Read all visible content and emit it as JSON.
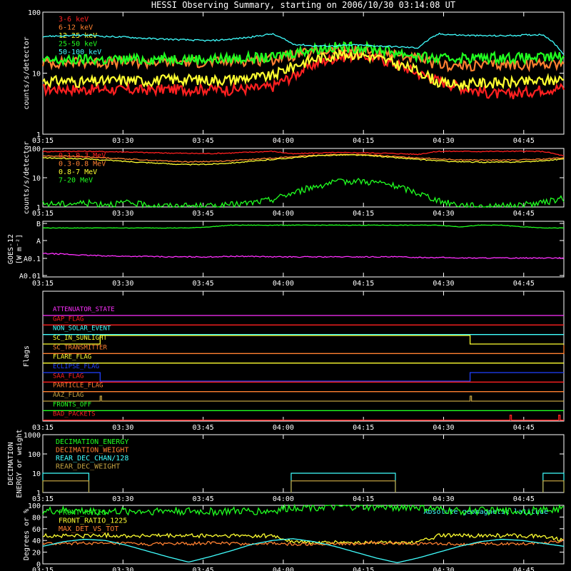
{
  "title": "HESSI Observing Summary, starting on 2006/10/30 03:14:08 UT",
  "x_ticks": [
    "03:15",
    "03:30",
    "03:45",
    "04:00",
    "04:15",
    "04:30",
    "04:45"
  ],
  "colors": {
    "red": "#ff2020",
    "orange": "#ff8030",
    "yellow": "#ffff30",
    "green": "#20ff20",
    "cyan": "#40ffff",
    "magenta": "#ff30ff",
    "blue": "#2040ff",
    "olive": "#c0a040",
    "white": "#ffffff"
  },
  "chart_data": [
    {
      "id": "lo",
      "type": "line",
      "ylabel": "counts/s/detector",
      "ylog": true,
      "ylim": [
        1,
        100
      ],
      "y_ticks": [
        "1",
        "10",
        "100"
      ],
      "x_ticks": [
        "03:15",
        "03:30",
        "03:45",
        "04:00",
        "04:15",
        "04:30",
        "04:45"
      ],
      "legend_placement": "top-left",
      "series": [
        {
          "name": "3-6 keV",
          "color": "red",
          "values": [
            5.5,
            5.6,
            5.4,
            5.5,
            5.3,
            5.4,
            5.5,
            5.5,
            5.6,
            5.4,
            5.6,
            6,
            9,
            14,
            18,
            20,
            18,
            14,
            10,
            7.5,
            6,
            5,
            4.5,
            4.8,
            5.5,
            5.8
          ]
        },
        {
          "name": "6-12 keV",
          "color": "orange",
          "values": [
            15,
            15,
            15.5,
            15,
            15.5,
            15,
            15.5,
            15.5,
            15,
            16,
            16.5,
            17,
            20,
            22,
            24,
            24,
            22,
            20,
            17,
            14,
            13,
            13.5,
            14,
            14,
            14.5,
            15
          ]
        },
        {
          "name": "12-25 keV",
          "color": "yellow",
          "values": [
            7.5,
            7.5,
            7.2,
            7.5,
            7.8,
            7.5,
            8,
            8,
            7.8,
            8,
            8.5,
            9,
            13,
            17,
            20,
            21,
            18,
            14,
            11,
            7,
            6.5,
            7,
            7,
            7.2,
            7.5,
            8
          ]
        },
        {
          "name": "25-50 keV",
          "color": "green",
          "values": [
            16,
            16,
            17,
            16.5,
            17,
            17,
            17.5,
            17.5,
            17,
            17.5,
            18,
            18,
            22,
            25,
            27,
            27,
            25,
            22,
            19,
            17,
            18,
            18,
            18.5,
            18,
            18,
            19
          ]
        },
        {
          "name": "50-100 keV",
          "color": "cyan",
          "values": [
            40,
            41,
            42,
            40,
            39,
            37,
            36,
            35,
            34,
            36,
            39,
            44,
            30,
            28,
            28,
            29,
            28,
            27,
            26,
            44,
            42,
            41,
            41,
            42,
            43,
            20
          ]
        }
      ]
    },
    {
      "id": "hi",
      "type": "line",
      "ylabel": "counts/s/detector",
      "ylog": true,
      "ylim": [
        1,
        100
      ],
      "y_ticks": [
        "1",
        "10",
        "100"
      ],
      "x_ticks": [
        "03:15",
        "03:30",
        "03:45",
        "04:00",
        "04:15",
        "04:30",
        "04:45"
      ],
      "legend_placement": "top-left",
      "series": [
        {
          "name": "0.1-0.3 MeV",
          "color": "red",
          "values": [
            78,
            80,
            80,
            78,
            76,
            72,
            70,
            68,
            67,
            70,
            75,
            80,
            65,
            70,
            72,
            72,
            70,
            67,
            63,
            80,
            80,
            79,
            80,
            80,
            79,
            55
          ]
        },
        {
          "name": "0.3-0.8 MeV",
          "color": "orange",
          "values": [
            55,
            55,
            52,
            48,
            44,
            40,
            37,
            35,
            36,
            38,
            42,
            47,
            52,
            58,
            62,
            62,
            58,
            52,
            48,
            44,
            41,
            40,
            40,
            41,
            43,
            48
          ]
        },
        {
          "name": "0.8-7 MeV",
          "color": "yellow",
          "values": [
            48,
            46,
            44,
            40,
            36,
            33,
            30,
            28,
            29,
            32,
            36,
            42,
            48,
            55,
            60,
            60,
            55,
            48,
            42,
            38,
            35,
            34,
            34,
            35,
            38,
            44
          ]
        },
        {
          "name": "7-20 MeV",
          "color": "green",
          "values": [
            1.3,
            1.3,
            1.4,
            1.3,
            1.4,
            1.2,
            1.1,
            1.1,
            1.1,
            1.2,
            1.4,
            1.8,
            3,
            5,
            7,
            8,
            7,
            5,
            3,
            1.6,
            1.2,
            1.1,
            1.1,
            1.2,
            1.4,
            2
          ]
        }
      ]
    },
    {
      "id": "goes",
      "type": "line",
      "ylabel": "GOES-12",
      "ylabel2": "[W m⁻²]",
      "y_ticks": [
        "B",
        "A",
        "A0.1",
        "A0.01"
      ],
      "x_ticks": [
        "03:15",
        "03:30",
        "03:45",
        "04:00",
        "04:15",
        "04:30",
        "04:45"
      ],
      "series": [
        {
          "color": "green",
          "values": [
            0.88,
            0.88,
            0.88,
            0.88,
            0.88,
            0.88,
            0.88,
            0.88,
            0.9,
            0.93,
            0.93,
            0.93,
            0.93,
            0.93,
            0.93,
            0.93,
            0.93,
            0.93,
            0.93,
            0.93,
            0.9,
            0.93,
            0.93,
            0.9,
            0.88,
            0.88
          ]
        },
        {
          "color": "magenta",
          "values": [
            0.42,
            0.41,
            0.39,
            0.38,
            0.37,
            0.37,
            0.36,
            0.36,
            0.36,
            0.37,
            0.37,
            0.36,
            0.36,
            0.36,
            0.36,
            0.36,
            0.36,
            0.36,
            0.35,
            0.35,
            0.34,
            0.34,
            0.34,
            0.34,
            0.34,
            0.34
          ]
        }
      ]
    },
    {
      "id": "flags",
      "type": "line",
      "ylabel": "Flags",
      "x_ticks": [
        "03:15",
        "03:30",
        "03:45",
        "04:00",
        "04:15",
        "04:30",
        "04:45"
      ],
      "flags": [
        {
          "name": "ATTENUATOR_STATE",
          "color": "magenta",
          "steps": []
        },
        {
          "name": "GAP_FLAG",
          "color": "red",
          "steps": []
        },
        {
          "name": "NON_SOLAR_EVENT",
          "color": "cyan",
          "steps": []
        },
        {
          "name": "SC_IN_SUNLIGHT",
          "color": "yellow",
          "steps": [
            [
              3.3,
              1
            ],
            [
              24.6,
              0
            ]
          ]
        },
        {
          "name": "SC_TRANSMITTER",
          "color": "orange",
          "steps": [
            [
              30.0,
              1
            ]
          ]
        },
        {
          "name": "FLARE_FLAG",
          "color": "yellow",
          "steps": []
        },
        {
          "name": "ECLIPSE_FLAG",
          "color": "blue",
          "steps": [
            [
              3.3,
              -1
            ],
            [
              24.6,
              0
            ]
          ]
        },
        {
          "name": "SAA_FLAG",
          "color": "red",
          "steps": []
        },
        {
          "name": "PARTICLE_FLAG",
          "color": "orange",
          "steps": []
        },
        {
          "name": "AAZ_FLAG",
          "color": "olive",
          "spikes": [
            3.3,
            24.6
          ]
        },
        {
          "name": "FRONTS_OFF",
          "color": "green",
          "steps": []
        },
        {
          "name": "BAD_PACKETS",
          "color": "red",
          "spikes": [
            26.9,
            29.7
          ]
        }
      ]
    },
    {
      "id": "decim",
      "type": "line",
      "ylabel": "DECIMATION",
      "ylabel2": "ENERGY or weight",
      "ylog": true,
      "ylim": [
        1,
        1000
      ],
      "y_ticks": [
        "1",
        "10",
        "100",
        "1000"
      ],
      "x_ticks": [
        "03:15",
        "03:30",
        "03:45",
        "04:00",
        "04:15",
        "04:30",
        "04:45"
      ],
      "legend_placement": "top-left",
      "series": [
        {
          "name": "DECIMATION_ENERGY",
          "color": "green",
          "values": []
        },
        {
          "name": "DECIMATION_WEIGHT",
          "color": "orange",
          "values": []
        },
        {
          "name": "REAR_DEC_CHAN/128",
          "color": "cyan",
          "blocks": [
            [
              0,
              2.65,
              10
            ],
            [
              14.3,
              20.3,
              10
            ],
            [
              28.8,
              30,
              10
            ]
          ]
        },
        {
          "name": "REAR_DEC_WEIGHT",
          "color": "olive",
          "blocks": [
            [
              0,
              2.65,
              4
            ],
            [
              14.3,
              20.3,
              4
            ],
            [
              28.8,
              30,
              4
            ]
          ]
        }
      ]
    },
    {
      "id": "front",
      "type": "line",
      "ylabel": "Degrees or %",
      "ylim": [
        0,
        100
      ],
      "y_ticks": [
        "0",
        "20",
        "40",
        "60",
        "80",
        "100"
      ],
      "x_ticks": [
        "03:15",
        "03:30",
        "03:45",
        "04:00",
        "04:15",
        "04:30",
        "04:45"
      ],
      "legend_placement": "top-left",
      "annotation": "Absolute geomagnetic latitude",
      "series": [
        {
          "name": "FRONT_RATIO",
          "color": "green",
          "values": [
            90,
            91,
            90,
            89,
            90,
            90,
            91,
            90,
            89,
            90,
            90,
            90,
            97,
            98,
            97,
            98,
            97,
            98,
            97,
            92,
            90,
            91,
            90,
            90,
            91,
            95
          ]
        },
        {
          "name": "FRONT_RATIO_1225",
          "color": "yellow",
          "values": [
            48,
            48,
            48,
            49,
            48,
            48,
            48,
            48,
            48,
            48,
            48,
            48,
            38,
            36,
            37,
            36,
            37,
            36,
            37,
            48,
            48,
            48,
            48,
            48,
            48,
            40
          ]
        },
        {
          "name": "MAX_DET_VS_TOT",
          "color": "orange",
          "values": [
            35,
            34,
            36,
            34,
            35,
            33,
            35,
            34,
            36,
            35,
            34,
            35,
            33,
            34,
            35,
            34,
            36,
            35,
            34,
            35,
            33,
            35,
            34,
            35,
            36,
            40
          ]
        },
        {
          "name": "Absolute geomagnetic latitude",
          "color": "cyan",
          "values": [
            30,
            38,
            42,
            40,
            32,
            22,
            12,
            3,
            12,
            22,
            33,
            40,
            43,
            38,
            30,
            20,
            10,
            2,
            10,
            20,
            30,
            38,
            42,
            40,
            35,
            30
          ]
        }
      ]
    }
  ]
}
